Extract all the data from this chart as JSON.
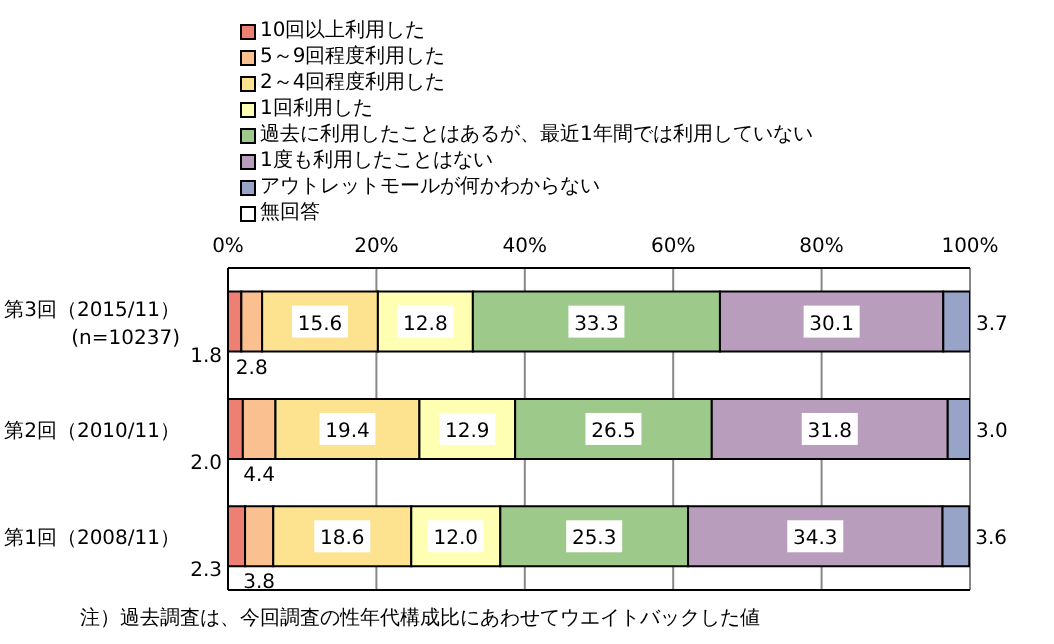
{
  "chart_data": {
    "type": "bar",
    "orientation": "horizontal",
    "stacked": true,
    "categories": [
      "第3回（2015/11）\n(n=10237)",
      "第2回（2010/11）",
      "第1回（2008/11）"
    ],
    "series": [
      {
        "name": "10回以上利用した",
        "color": "#ee7f73",
        "values": [
          1.8,
          2.0,
          2.3
        ],
        "value_labels": [
          "1.8",
          "2.0",
          "2.3"
        ]
      },
      {
        "name": "5～9回程度利用した",
        "color": "#fac090",
        "values": [
          2.8,
          4.4,
          3.8
        ],
        "value_labels": [
          "2.8",
          "4.4",
          "3.8"
        ]
      },
      {
        "name": "2～4回程度利用した",
        "color": "#fde28f",
        "values": [
          15.6,
          19.4,
          18.6
        ],
        "value_labels": [
          "15.6",
          "19.4",
          "18.6"
        ]
      },
      {
        "name": "1回利用した",
        "color": "#ffffb3",
        "values": [
          12.8,
          12.9,
          12.0
        ],
        "value_labels": [
          "12.8",
          "12.9",
          "12.0"
        ]
      },
      {
        "name": "過去に利用したことはあるが、最近1年間では利用していない",
        "color": "#9dc98a",
        "values": [
          33.3,
          26.5,
          25.3
        ],
        "value_labels": [
          "33.3",
          "26.5",
          "25.3"
        ]
      },
      {
        "name": "1度も利用したことはない",
        "color": "#b89dbd",
        "values": [
          30.1,
          31.8,
          34.3
        ],
        "value_labels": [
          "30.1",
          "31.8",
          "34.3"
        ]
      },
      {
        "name": "アウトレットモールが何かわからない",
        "color": "#98a3c8",
        "values": [
          3.7,
          3.0,
          3.6
        ],
        "value_labels": [
          "3.7",
          "3.0",
          "3.6"
        ]
      },
      {
        "name": "無回答",
        "color": "#ffffff",
        "values": [
          null,
          null,
          null
        ]
      }
    ],
    "xlim": [
      0,
      100
    ],
    "xticks": [
      {
        "value": 0,
        "label": "0%"
      },
      {
        "value": 20,
        "label": "20%"
      },
      {
        "value": 40,
        "label": "40%"
      },
      {
        "value": 60,
        "label": "60%"
      },
      {
        "value": 80,
        "label": "80%"
      },
      {
        "value": 100,
        "label": "100%"
      }
    ],
    "grid": "x",
    "legend": "top",
    "annotations": [
      "注）過去調査は、今回調査の性年代構成比にあわせてウエイトバックした値"
    ]
  }
}
